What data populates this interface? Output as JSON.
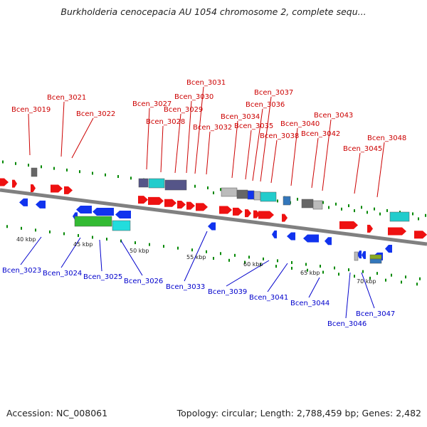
{
  "title": "Burkholderia cenocepacia AU 1054 chromosome 2, complete sequ...",
  "footer": {
    "accession": "Accession: NC_008061",
    "topology": "Topology: circular; Length: 2,788,459 bp; Genes: 2,482"
  },
  "colors": {
    "plus_label": "#cc0000",
    "minus_label": "#0000cc",
    "plus_gene": "#ee1111",
    "minus_gene": "#1133ee",
    "backbone": "#808080",
    "tick": "#008800"
  },
  "scale_labels": [
    "40 kbp",
    "45 kbp",
    "50 kbp",
    "55 kbp",
    "60 kbp",
    "65 kbp",
    "70 kbp"
  ],
  "plus_labels": [
    "Bcen_3019",
    "Bcen_3021",
    "Bcen_3022",
    "Bcen_3027",
    "Bcen_3028",
    "Bcen_3029",
    "Bcen_3030",
    "Bcen_3031",
    "Bcen_3032",
    "Bcen_3034",
    "Bcen_3035",
    "Bcen_3036",
    "Bcen_3037",
    "Bcen_3038",
    "Bcen_3040",
    "Bcen_3042",
    "Bcen_3043",
    "Bcen_3045",
    "Bcen_3048"
  ],
  "minus_labels": [
    "Bcen_3023",
    "Bcen_3024",
    "Bcen_3025",
    "Bcen_3026",
    "Bcen_3033",
    "Bcen_3039",
    "Bcen_3041",
    "Bcen_3044",
    "Bcen_3046",
    "Bcen_3047"
  ]
}
